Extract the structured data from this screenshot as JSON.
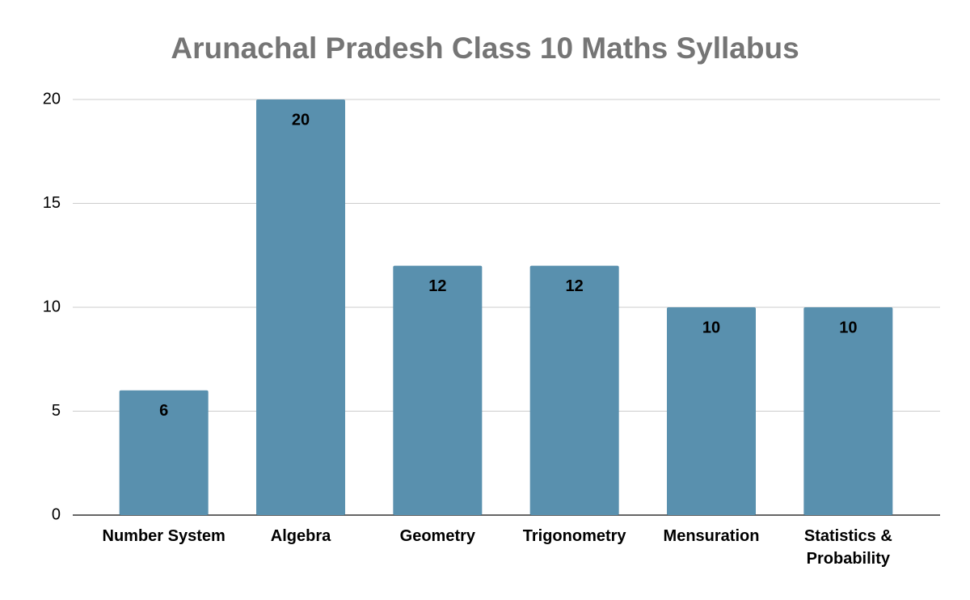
{
  "chart_data": {
    "type": "bar",
    "title": "Arunachal Pradesh Class 10 Maths Syllabus",
    "categories": [
      "Number System",
      "Algebra",
      "Geometry",
      "Trigonometry",
      "Mensuration",
      "Statistics & Probability"
    ],
    "values": [
      6,
      20,
      12,
      12,
      10,
      10
    ],
    "color": "#5990ae",
    "ylim": [
      0,
      20
    ],
    "yticks": [
      0,
      5,
      10,
      15,
      20
    ],
    "grid": true
  }
}
